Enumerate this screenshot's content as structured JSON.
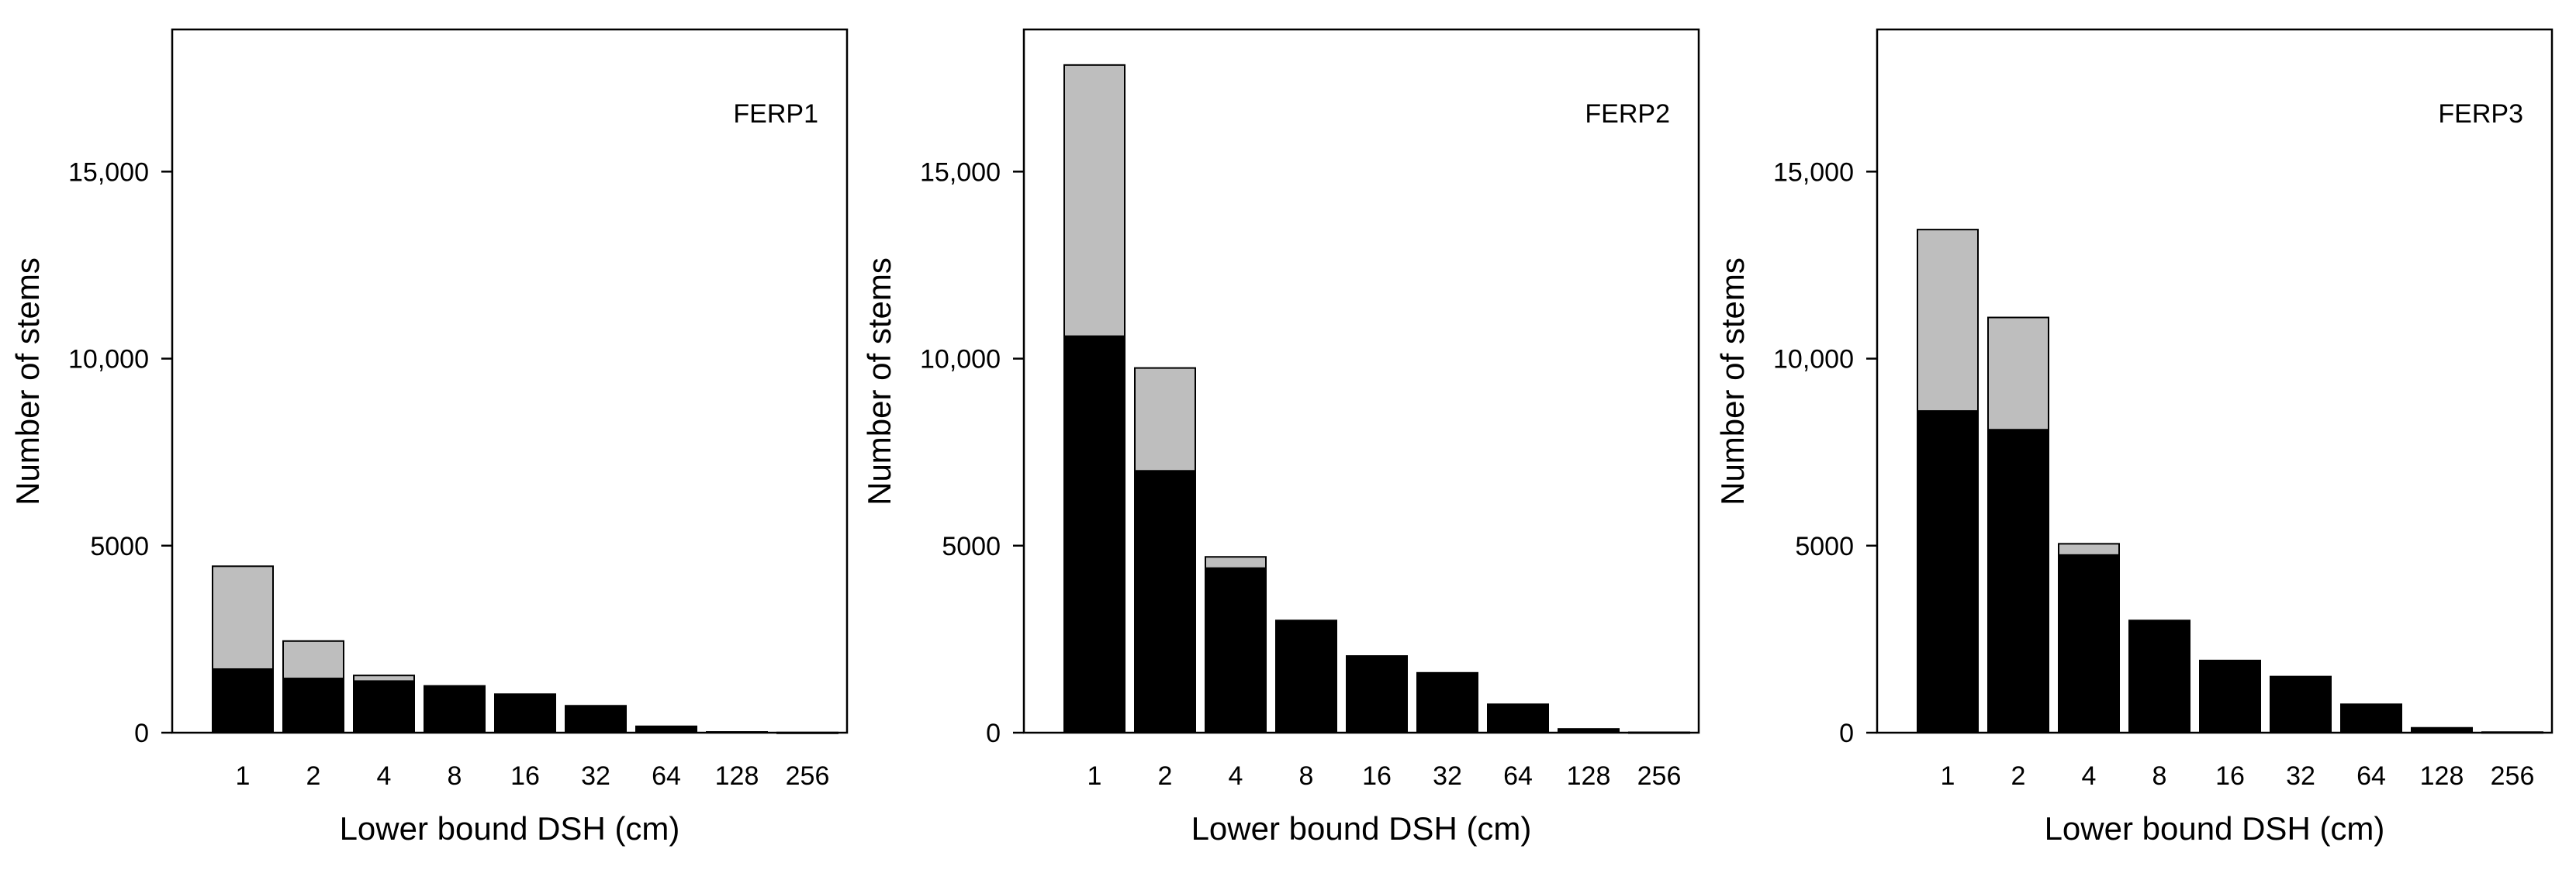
{
  "chart_data": [
    {
      "type": "bar",
      "stacked": true,
      "label": "FERP1",
      "xlabel": "Lower bound DSH (cm)",
      "ylabel": "Number of stems",
      "categories": [
        "1",
        "2",
        "4",
        "8",
        "16",
        "32",
        "64",
        "128",
        "256"
      ],
      "ylim": [
        0,
        18800
      ],
      "yticks": [
        "0",
        "5000",
        "10,000",
        "15,000"
      ],
      "series": [
        {
          "values": [
            1700,
            1450,
            1380,
            1250,
            1030,
            720,
            170,
            20,
            5
          ],
          "color": "#000000"
        },
        {
          "values": [
            2750,
            1000,
            150,
            0,
            0,
            0,
            0,
            0,
            0
          ],
          "color": "#bebebe"
        }
      ]
    },
    {
      "type": "bar",
      "stacked": true,
      "label": "FERP2",
      "xlabel": "Lower bound DSH (cm)",
      "ylabel": "Number of stems",
      "categories": [
        "1",
        "2",
        "4",
        "8",
        "16",
        "32",
        "64",
        "128",
        "256"
      ],
      "ylim": [
        0,
        18800
      ],
      "yticks": [
        "0",
        "5000",
        "10,000",
        "15,000"
      ],
      "series": [
        {
          "values": [
            10600,
            7000,
            4400,
            3000,
            2050,
            1600,
            760,
            100,
            10
          ],
          "color": "#000000"
        },
        {
          "values": [
            7250,
            2750,
            300,
            0,
            0,
            0,
            0,
            0,
            0
          ],
          "color": "#bebebe"
        }
      ]
    },
    {
      "type": "bar",
      "stacked": true,
      "label": "FERP3",
      "xlabel": "Lower bound DSH (cm)",
      "ylabel": "Number of stems",
      "categories": [
        "1",
        "2",
        "4",
        "8",
        "16",
        "32",
        "64",
        "128",
        "256"
      ],
      "ylim": [
        0,
        18800
      ],
      "yticks": [
        "0",
        "5000",
        "10,000",
        "15,000"
      ],
      "series": [
        {
          "values": [
            8600,
            8100,
            4750,
            3000,
            1930,
            1500,
            760,
            130,
            15
          ],
          "color": "#000000"
        },
        {
          "values": [
            4850,
            3000,
            300,
            0,
            0,
            0,
            0,
            0,
            0
          ],
          "color": "#bebebe"
        }
      ]
    }
  ]
}
